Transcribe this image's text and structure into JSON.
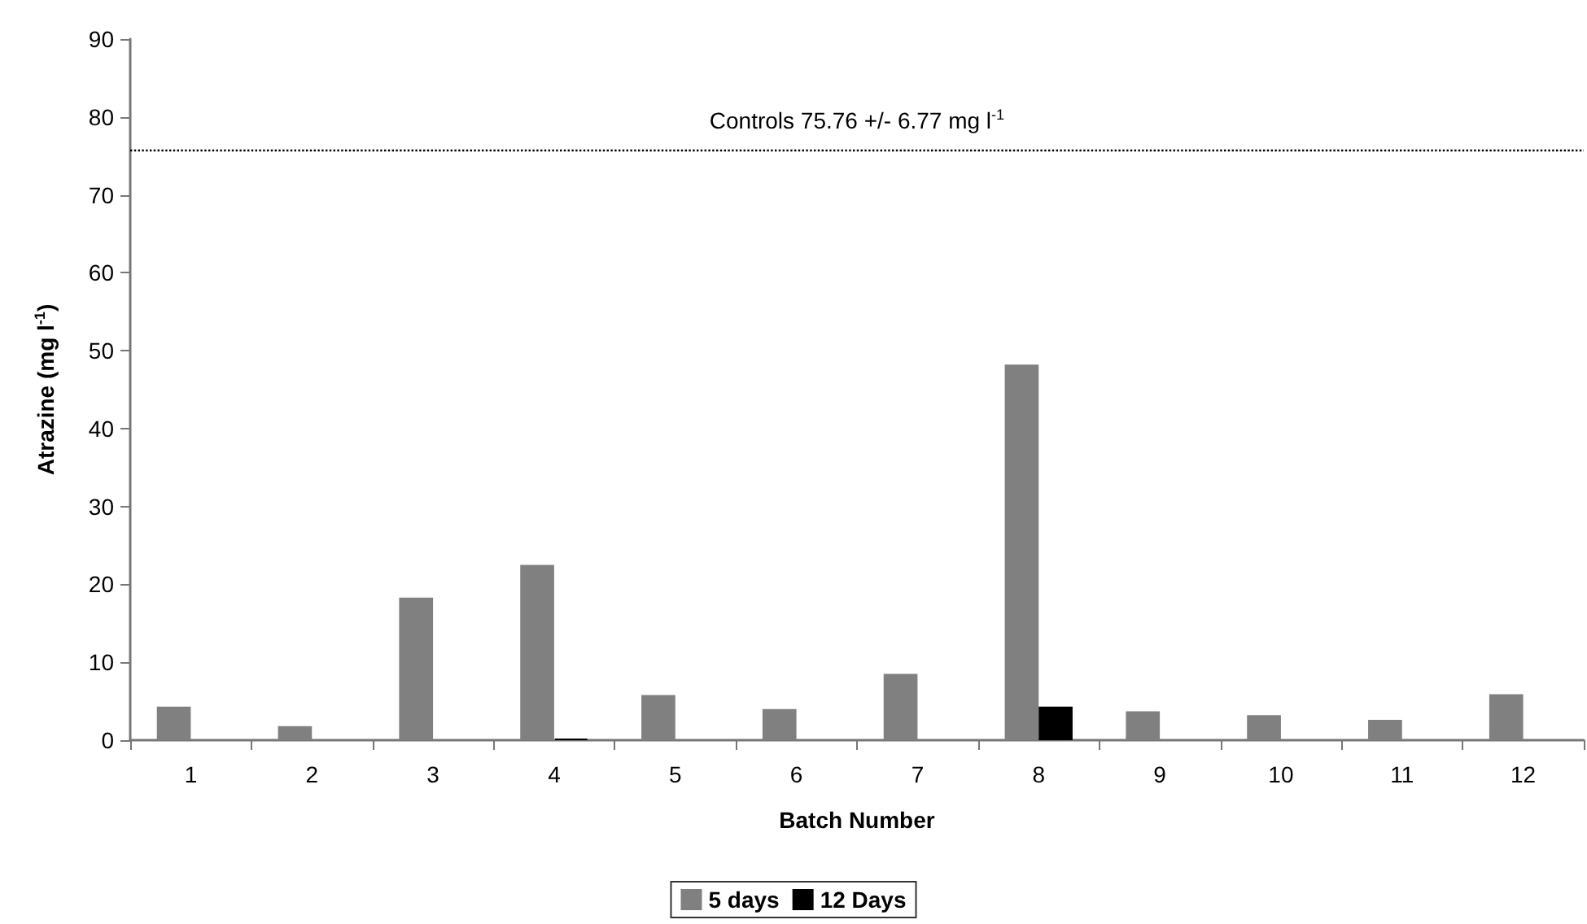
{
  "chart_data": {
    "type": "bar",
    "xlabel": "Batch Number",
    "ylabel": "Atrazine (mg l$^{-1}$)",
    "categories": [
      "1",
      "2",
      "3",
      "4",
      "5",
      "6",
      "7",
      "8",
      "9",
      "10",
      "11",
      "12"
    ],
    "series": [
      {
        "name": "5 days",
        "color": "#808080",
        "values": [
          4.3,
          1.8,
          18.3,
          22.5,
          5.8,
          4.0,
          8.5,
          48.2,
          3.7,
          3.2,
          2.6,
          5.9
        ]
      },
      {
        "name": "12 Days",
        "color": "#000000",
        "values": [
          null,
          null,
          null,
          0.2,
          null,
          null,
          null,
          4.3,
          null,
          null,
          null,
          null
        ]
      }
    ],
    "ylim": [
      0,
      90
    ],
    "yticks": [
      0,
      10,
      20,
      30,
      40,
      50,
      60,
      70,
      80,
      90
    ],
    "grid": false,
    "legend": "bottom",
    "ref_lines": [
      {
        "axis": "y",
        "value": 75.76,
        "label": "Controls 75.76 +/- 6.77 mg l$^{-1}$",
        "color": "#000000",
        "line_style": "dotted"
      }
    ]
  }
}
